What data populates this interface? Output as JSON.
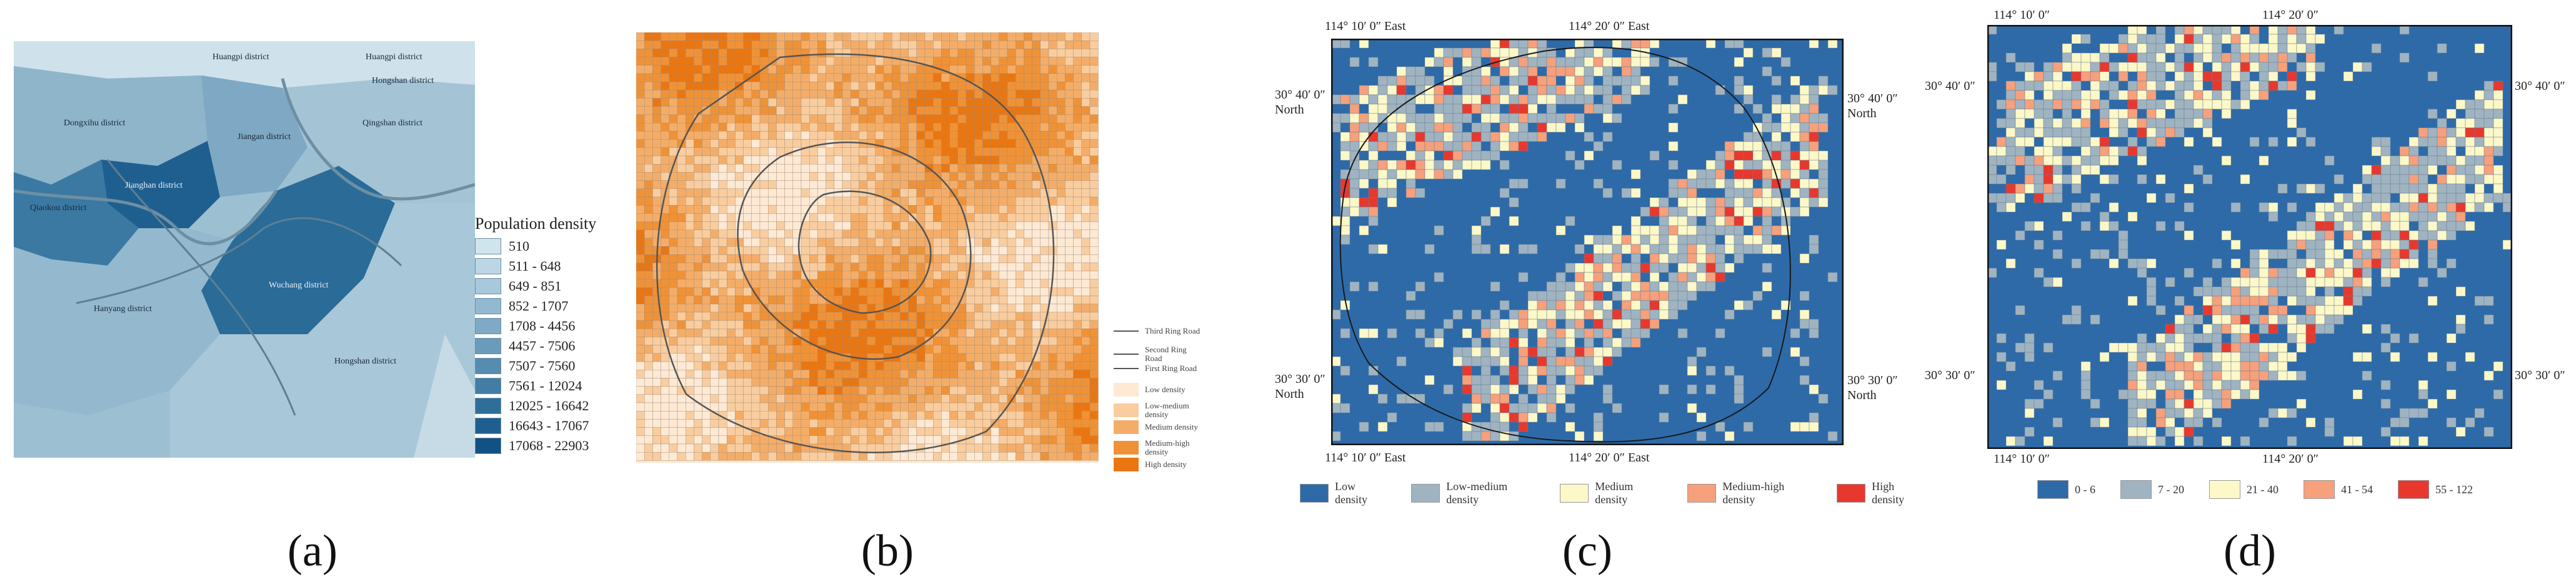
{
  "captions": {
    "a": "(a)",
    "b": "(b)",
    "c": "(c)",
    "d": "(d)"
  },
  "panel_a": {
    "legend_title": "Population density",
    "legend_items": [
      {
        "label": "510",
        "color": "#d0e4ee"
      },
      {
        "label": "511 - 648",
        "color": "#bcd6e6"
      },
      {
        "label": "649 - 851",
        "color": "#a8c8dc"
      },
      {
        "label": "852 - 1707",
        "color": "#93b9d1"
      },
      {
        "label": "1708 - 4456",
        "color": "#7eaac6"
      },
      {
        "label": "4457 - 7506",
        "color": "#6a9bbb"
      },
      {
        "label": "7507 - 7560",
        "color": "#568cb0"
      },
      {
        "label": "7561 - 12024",
        "color": "#437da5"
      },
      {
        "label": "12025 - 16642",
        "color": "#306e9a"
      },
      {
        "label": "16643 - 17067",
        "color": "#1f5f8f"
      },
      {
        "label": "17068 - 22903",
        "color": "#125184"
      }
    ],
    "districts": [
      "Huangpi district",
      "Huangpi district",
      "Hongshan district",
      "Dongxihu district",
      "Jiangan district",
      "Qingshan district",
      "Jianghan district",
      "Qiaokou district",
      "Wuchang district",
      "Hanyang district",
      "Hongshan district"
    ]
  },
  "panel_b": {
    "legend_items": [
      {
        "label": "Third Ring Road",
        "type": "line"
      },
      {
        "label": "Second Ring Road",
        "type": "line"
      },
      {
        "label": "First Ring Road",
        "type": "line"
      },
      {
        "label": "Low density",
        "color": "#fde9d4"
      },
      {
        "label": "Low-medium density",
        "color": "#f9cd9f"
      },
      {
        "label": "Medium density",
        "color": "#f4ad68"
      },
      {
        "label": "Medium-high density",
        "color": "#ef9237"
      },
      {
        "label": "High density",
        "color": "#ea7612"
      }
    ]
  },
  "panel_c": {
    "coords": {
      "top_left": "114° 10′ 0″ East",
      "top_right": "114° 20′ 0″ East",
      "bottom_left": "114° 10′ 0″ East",
      "bottom_right": "114° 20′ 0″ East",
      "left_top": "30° 40′ 0″ North",
      "left_bottom": "30° 30′ 0″ North",
      "right_top": "30° 40′ 0″ North",
      "right_bottom": "30° 30′ 0″ North"
    },
    "legend_items": [
      {
        "label": "Low density",
        "color": "#2e6aa8"
      },
      {
        "label": "Low-medium density",
        "color": "#9fb3c1"
      },
      {
        "label": "Medium density",
        "color": "#fdf8c8"
      },
      {
        "label": "Medium-high density",
        "color": "#f6a07c"
      },
      {
        "label": "High density",
        "color": "#e8382e"
      }
    ]
  },
  "panel_d": {
    "coords": {
      "top_left": "114° 10′ 0″",
      "top_right": "114° 20′ 0″",
      "bottom_left": "114° 10′ 0″",
      "bottom_right": "114° 20′ 0″",
      "left_top": "30° 40′ 0″",
      "left_bottom": "30° 30′ 0″",
      "right_top": "30° 40′ 0″",
      "right_bottom": "30° 30′ 0″"
    },
    "legend_items": [
      {
        "label": "0 - 6",
        "color": "#2e6aa8"
      },
      {
        "label": "7 - 20",
        "color": "#9fb3c1"
      },
      {
        "label": "21 - 40",
        "color": "#fdf8c8"
      },
      {
        "label": "41 - 54",
        "color": "#f6a07c"
      },
      {
        "label": "55 - 122",
        "color": "#e8382e"
      }
    ]
  }
}
